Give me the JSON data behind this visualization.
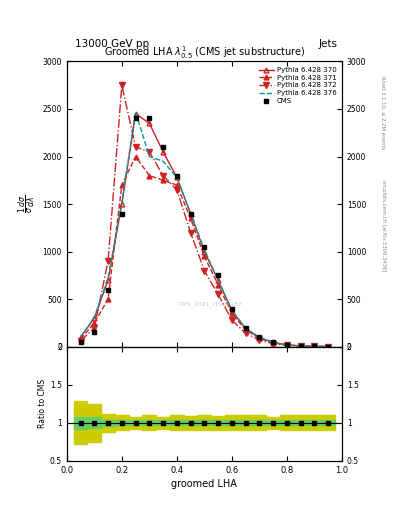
{
  "title": "Groomed LHA $\\lambda^{1}_{0.5}$ (CMS jet substructure)",
  "header_left": "13000 GeV pp",
  "header_right": "Jets",
  "xlabel": "groomed LHA",
  "watermark": "CMS_2021_I1920187",
  "right_label_top": "Rivet 3.1.10, ≥ 2.2M events",
  "right_label_bottom": "mcplots.cern.ch [arXiv:1306.3436]",
  "cms_x": [
    0.05,
    0.1,
    0.15,
    0.2,
    0.25,
    0.3,
    0.35,
    0.4,
    0.45,
    0.5,
    0.55,
    0.6,
    0.65,
    0.7,
    0.75,
    0.8,
    0.85,
    0.9,
    0.95
  ],
  "cms_y": [
    50,
    150,
    600,
    1400,
    2400,
    2400,
    2100,
    1800,
    1400,
    1050,
    750,
    400,
    200,
    100,
    50,
    20,
    10,
    5,
    2
  ],
  "p370_y": [
    100,
    300,
    700,
    1500,
    2450,
    2350,
    2050,
    1780,
    1400,
    1000,
    700,
    380,
    190,
    95,
    45,
    18,
    8,
    4,
    2
  ],
  "p371_y": [
    80,
    250,
    500,
    1700,
    2000,
    1800,
    1750,
    1700,
    1350,
    950,
    650,
    350,
    175,
    88,
    42,
    17,
    8,
    4,
    2
  ],
  "p372_y": [
    60,
    200,
    900,
    2750,
    2100,
    2050,
    1800,
    1650,
    1200,
    800,
    550,
    280,
    140,
    70,
    33,
    13,
    6,
    3,
    1
  ],
  "p376_y": [
    100,
    310,
    720,
    1520,
    2470,
    2000,
    1950,
    1780,
    1400,
    1020,
    700,
    380,
    195,
    98,
    47,
    19,
    9,
    4,
    2
  ],
  "ratio_yellow_lo": [
    0.72,
    0.75,
    0.88,
    0.9,
    0.92,
    0.9,
    0.92,
    0.9,
    0.91,
    0.9,
    0.91,
    0.9,
    0.9,
    0.9,
    0.92,
    0.9,
    0.9,
    0.9,
    0.9
  ],
  "ratio_yellow_hi": [
    1.28,
    1.25,
    1.12,
    1.1,
    1.08,
    1.1,
    1.08,
    1.1,
    1.09,
    1.1,
    1.09,
    1.1,
    1.1,
    1.1,
    1.08,
    1.1,
    1.1,
    1.1,
    1.1
  ],
  "ratio_green_lo": [
    0.92,
    0.93,
    0.96,
    0.97,
    0.97,
    0.97,
    0.97,
    0.97,
    0.97,
    0.97,
    0.97,
    0.97,
    0.97,
    0.97,
    0.97,
    0.97,
    0.97,
    0.97,
    0.97
  ],
  "ratio_green_hi": [
    1.08,
    1.07,
    1.04,
    1.03,
    1.03,
    1.03,
    1.03,
    1.03,
    1.03,
    1.03,
    1.03,
    1.03,
    1.03,
    1.03,
    1.03,
    1.03,
    1.03,
    1.03,
    1.03
  ],
  "ylim": [
    0,
    3000
  ],
  "yticks": [
    0,
    500,
    1000,
    1500,
    2000,
    2500,
    3000
  ],
  "ratio_ylim": [
    0.5,
    2.0
  ],
  "color_cms": "#000000",
  "color_370": "#cc2222",
  "color_371": "#cc2222",
  "color_372": "#cc2222",
  "color_376": "#009999",
  "green_band": "#66cc66",
  "yellow_band": "#cccc00"
}
